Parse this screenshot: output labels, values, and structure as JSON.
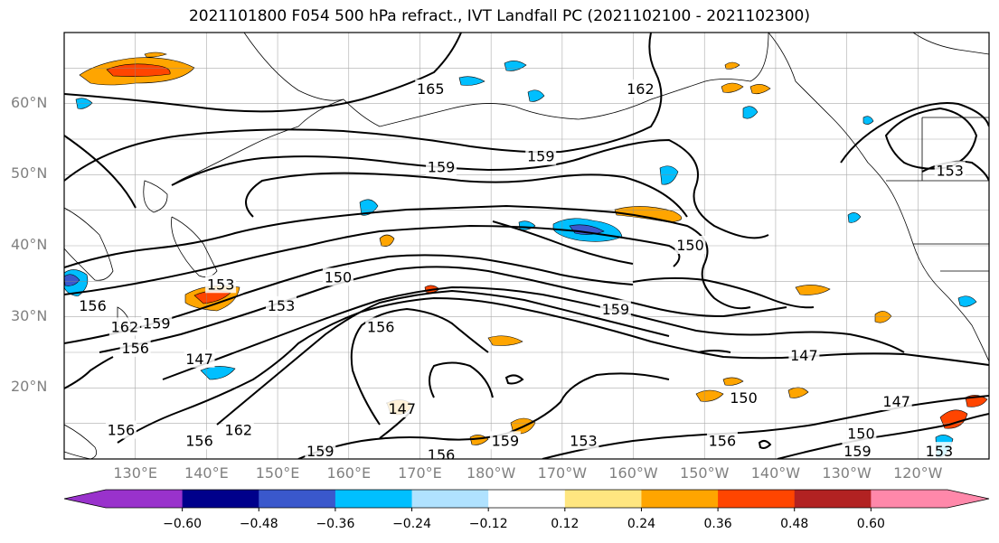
{
  "title": "2021101800 F054 500 hPa refract., IVT Landfall PC (2021102100 - 2021102300)",
  "lat_labels": [
    {
      "text": "60°N",
      "lat": 60
    },
    {
      "text": "50°N",
      "lat": 50
    },
    {
      "text": "40°N",
      "lat": 40
    },
    {
      "text": "30°N",
      "lat": 30
    },
    {
      "text": "20°N",
      "lat": 20
    }
  ],
  "lon_labels": [
    {
      "text": "130°E",
      "lon": 130
    },
    {
      "text": "140°E",
      "lon": 140
    },
    {
      "text": "150°E",
      "lon": 150
    },
    {
      "text": "160°E",
      "lon": 160
    },
    {
      "text": "170°E",
      "lon": 170
    },
    {
      "text": "180°W",
      "lon": 180
    },
    {
      "text": "170°W",
      "lon": 190
    },
    {
      "text": "160°W",
      "lon": 200
    },
    {
      "text": "150°W",
      "lon": 210
    },
    {
      "text": "140°W",
      "lon": 220
    },
    {
      "text": "130°W",
      "lon": 230
    },
    {
      "text": "120°W",
      "lon": 240
    }
  ],
  "map_extent": {
    "lon_min": 120,
    "lon_max": 250,
    "lat_min": 10,
    "lat_max": 70
  },
  "colorbar": {
    "colors": [
      "#9932cc",
      "#00008b",
      "#3a58cc",
      "#00bfff",
      "#b0e2ff",
      "#ffffff",
      "#ffe680",
      "#ffa500",
      "#ff4500",
      "#b22222",
      "#ff88aa"
    ],
    "ticks": [
      "−0.60",
      "−0.48",
      "−0.36",
      "−0.24",
      "−0.12",
      "0.12",
      "0.24",
      "0.36",
      "0.48",
      "0.60"
    ]
  },
  "contour_labels": [
    {
      "text": "165",
      "lon": 171.5,
      "lat": 62
    },
    {
      "text": "162",
      "lon": 201,
      "lat": 62
    },
    {
      "text": "159",
      "lon": 173,
      "lat": 51
    },
    {
      "text": "159",
      "lon": 187,
      "lat": 52.5
    },
    {
      "text": "153",
      "lon": 244.5,
      "lat": 50.5
    },
    {
      "text": "150",
      "lon": 208,
      "lat": 40
    },
    {
      "text": "150",
      "lon": 158.5,
      "lat": 35.5
    },
    {
      "text": "153",
      "lon": 142,
      "lat": 34.5
    },
    {
      "text": "153",
      "lon": 150.5,
      "lat": 31.5
    },
    {
      "text": "156",
      "lon": 124,
      "lat": 31.5
    },
    {
      "text": "159",
      "lon": 133,
      "lat": 29
    },
    {
      "text": "162",
      "lon": 128.5,
      "lat": 28.5
    },
    {
      "text": "159",
      "lon": 197.5,
      "lat": 31
    },
    {
      "text": "156",
      "lon": 164.5,
      "lat": 28.5
    },
    {
      "text": "156",
      "lon": 130,
      "lat": 25.5
    },
    {
      "text": "147",
      "lon": 139,
      "lat": 24
    },
    {
      "text": "147",
      "lon": 224,
      "lat": 24.5
    },
    {
      "text": "147",
      "lon": 167.5,
      "lat": 17
    },
    {
      "text": "150",
      "lon": 215.5,
      "lat": 18.5
    },
    {
      "text": "147",
      "lon": 237,
      "lat": 18
    },
    {
      "text": "162",
      "lon": 144.5,
      "lat": 14
    },
    {
      "text": "156",
      "lon": 128,
      "lat": 14
    },
    {
      "text": "156",
      "lon": 139,
      "lat": 12.5
    },
    {
      "text": "156",
      "lon": 173,
      "lat": 10.5
    },
    {
      "text": "159",
      "lon": 156,
      "lat": 11
    },
    {
      "text": "159",
      "lon": 182,
      "lat": 12.5
    },
    {
      "text": "153",
      "lon": 193,
      "lat": 12.5
    },
    {
      "text": "156",
      "lon": 212.5,
      "lat": 12.5
    },
    {
      "text": "150",
      "lon": 232,
      "lat": 13.5
    },
    {
      "text": "159",
      "lon": 231.5,
      "lat": 11
    },
    {
      "text": "153",
      "lon": 243,
      "lat": 11
    }
  ]
}
